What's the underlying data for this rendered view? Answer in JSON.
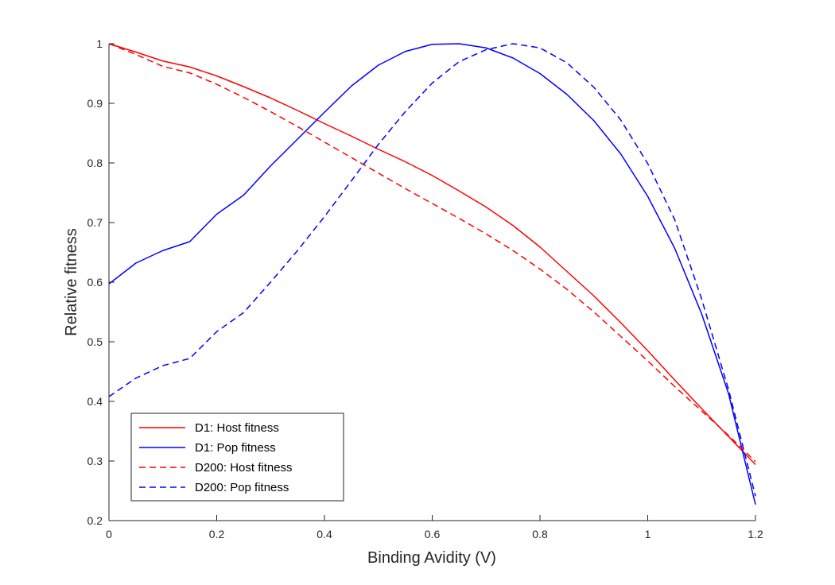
{
  "chart_data": {
    "type": "line",
    "title": "",
    "xlabel": "Binding Avidity (V)",
    "ylabel": "Relative fitness",
    "xlim": [
      0,
      1.2
    ],
    "ylim": [
      0.2,
      1.0
    ],
    "xticks": [
      0,
      0.2,
      0.4,
      0.6,
      0.8,
      1,
      1.2
    ],
    "xtick_labels": [
      "0",
      "0.2",
      "0.4",
      "0.6",
      "0.8",
      "1",
      "1.2"
    ],
    "yticks": [
      0.2,
      0.3,
      0.4,
      0.5,
      0.6,
      0.7,
      0.8,
      0.9,
      1
    ],
    "ytick_labels": [
      "0.2",
      "0.3",
      "0.4",
      "0.5",
      "0.6",
      "0.7",
      "0.8",
      "0.9",
      "1"
    ],
    "grid": false,
    "legend_position": "bottom-left",
    "x": [
      0,
      0.05,
      0.1,
      0.15,
      0.2,
      0.25,
      0.3,
      0.35,
      0.4,
      0.45,
      0.5,
      0.55,
      0.6,
      0.65,
      0.7,
      0.75,
      0.8,
      0.85,
      0.9,
      0.95,
      1.0,
      1.05,
      1.1,
      1.15,
      1.2
    ],
    "series": [
      {
        "name": "D1: Host fitness",
        "color": "#ff0000",
        "dash": "solid",
        "values": [
          1.0,
          0.986,
          0.971,
          0.961,
          0.946,
          0.928,
          0.909,
          0.888,
          0.866,
          0.845,
          0.823,
          0.802,
          0.779,
          0.753,
          0.726,
          0.695,
          0.659,
          0.618,
          0.577,
          0.532,
          0.485,
          0.436,
          0.388,
          0.341,
          0.294
        ]
      },
      {
        "name": "D1: Pop fitness",
        "color": "#0000ff",
        "dash": "solid",
        "values": [
          0.597,
          0.632,
          0.653,
          0.668,
          0.714,
          0.746,
          0.795,
          0.84,
          0.885,
          0.929,
          0.964,
          0.987,
          0.999,
          1.0,
          0.993,
          0.976,
          0.95,
          0.915,
          0.871,
          0.815,
          0.744,
          0.657,
          0.547,
          0.413,
          0.227
        ]
      },
      {
        "name": "D200: Host fitness",
        "color": "#ff0000",
        "dash": "dashed",
        "values": [
          1.0,
          0.982,
          0.962,
          0.951,
          0.932,
          0.91,
          0.886,
          0.861,
          0.835,
          0.809,
          0.783,
          0.757,
          0.732,
          0.707,
          0.681,
          0.653,
          0.622,
          0.588,
          0.55,
          0.509,
          0.468,
          0.425,
          0.384,
          0.343,
          0.299
        ]
      },
      {
        "name": "D200: Pop fitness",
        "color": "#0000ff",
        "dash": "dashed",
        "values": [
          0.408,
          0.439,
          0.46,
          0.472,
          0.517,
          0.549,
          0.6,
          0.653,
          0.71,
          0.77,
          0.831,
          0.886,
          0.934,
          0.97,
          0.99,
          1.0,
          0.993,
          0.968,
          0.927,
          0.872,
          0.799,
          0.705,
          0.572,
          0.42,
          0.241
        ]
      }
    ]
  }
}
